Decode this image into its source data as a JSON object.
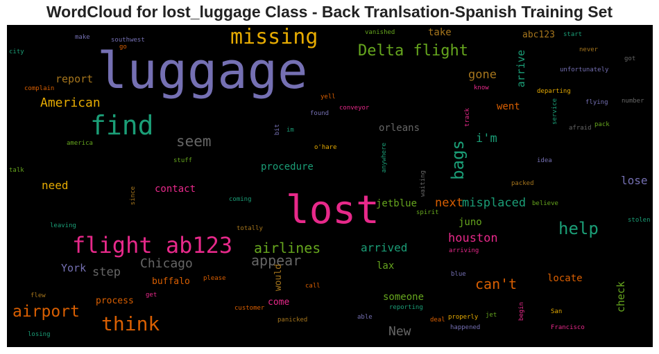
{
  "title": "WordCloud for lost_luggage Class - Back Tranlsation-Spanish Training Set",
  "colors": {
    "purple": "#7570b3",
    "green": "#1b9e77",
    "orange": "#d95f02",
    "pink": "#e7298a",
    "lime": "#66a61e",
    "gold": "#e6ab02",
    "brown": "#a6761d",
    "gray": "#666666"
  },
  "words": {
    "luggage": "luggage",
    "lost": "lost",
    "flight_ab123": "flight ab123",
    "find": "find",
    "missing": "missing",
    "delta_flight": "Delta flight",
    "think": "think",
    "airport": "airport",
    "help": "help",
    "american": "American",
    "bags": "bags",
    "seem": "seem",
    "appear": "appear",
    "airlines": "airlines",
    "chicago": "Chicago",
    "cant": "can't",
    "new": "New",
    "misplaced": "misplaced",
    "next": "next",
    "houston": "houston",
    "im": "i'm",
    "gone": "gone",
    "report": "report",
    "need": "need",
    "step": "step",
    "york": "York",
    "lose": "lose",
    "arrived": "arrived",
    "someone": "someone",
    "arrive": "arrive",
    "locate": "locate",
    "check": "check",
    "procedure": "procedure",
    "contact": "contact",
    "orleans": "orleans",
    "jetblue": "jetblue",
    "juno": "juno",
    "lax": "lax",
    "went": "went",
    "take": "take",
    "abc123": "abc123",
    "process": "process",
    "buffalo": "buffalo",
    "come": "come",
    "would": "would",
    "track": "track",
    "conveyor": "conveyor",
    "found": "found",
    "yell": "yell",
    "ohare": "o'hare",
    "anywhere": "anywhere",
    "waiting": "waiting",
    "spirit": "spirit",
    "coming": "coming",
    "totally": "totally",
    "stuff": "stuff",
    "since": "since",
    "talk": "talk",
    "america": "america",
    "bit": "bit",
    "im2": "im",
    "complain": "complain",
    "city": "city",
    "go": "go",
    "make": "make",
    "southwest": "southwest",
    "vanished": "vanished",
    "start": "start",
    "never": "never",
    "got": "got",
    "unfortunately": "unfortunately",
    "departing": "departing",
    "know": "know",
    "service": "service",
    "flying": "flying",
    "number": "number",
    "afraid": "afraid",
    "pack": "pack",
    "idea": "idea",
    "packed": "packed",
    "believe": "believe",
    "stolen": "stolen",
    "arriving": "arriving",
    "blue": "blue",
    "happened": "happened",
    "properly": "properly",
    "jet": "jet",
    "deal": "deal",
    "able": "able",
    "reporting": "reporting",
    "panicked": "panicked",
    "customer": "customer",
    "call": "call",
    "please": "please",
    "get": "get",
    "flew": "flew",
    "losing": "losing",
    "leaving": "leaving",
    "begin": "begin",
    "san": "San",
    "francisco": "Francisco"
  }
}
